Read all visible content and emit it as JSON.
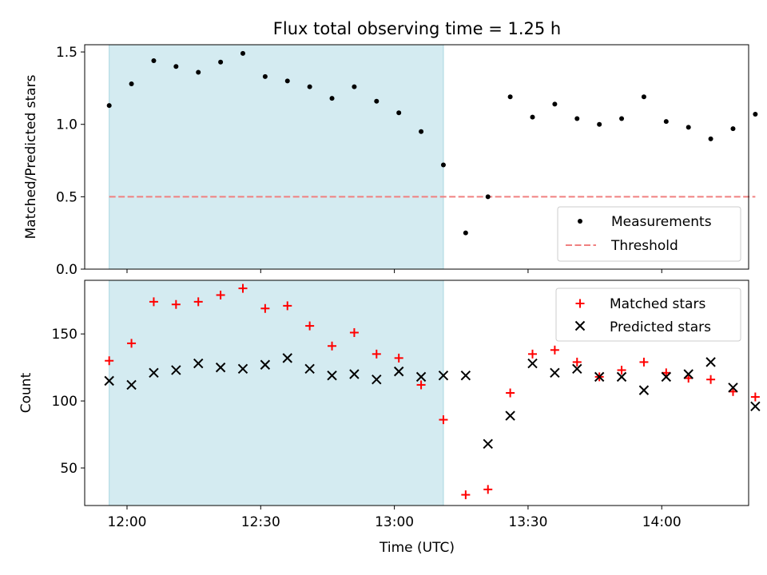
{
  "chart_data": {
    "type": "scatter",
    "title": "Flux total observing time = 1.25 h",
    "xlabel": "Time (UTC)",
    "x_ticks": [
      "12:00",
      "12:30",
      "13:00",
      "13:30",
      "14:00"
    ],
    "x_tick_minutes": [
      720,
      750,
      780,
      810,
      840
    ],
    "xlim_minutes": [
      710.5,
      859.5
    ],
    "shaded_interval_minutes": [
      716,
      791
    ],
    "shaded_color": "#d4ebf1",
    "times": [
      "11:56",
      "12:01",
      "12:06",
      "12:11",
      "12:16",
      "12:21",
      "12:26",
      "12:31",
      "12:36",
      "12:41",
      "12:46",
      "12:51",
      "12:56",
      "13:01",
      "13:06",
      "13:11",
      "13:16",
      "13:21",
      "13:26",
      "13:31",
      "13:36",
      "13:41",
      "13:46",
      "13:51",
      "13:56",
      "14:01",
      "14:06",
      "14:11",
      "14:16",
      "14:21"
    ],
    "top": {
      "ylabel": "Matched/Predicted stars",
      "ylim": [
        0,
        1.55
      ],
      "y_ticks": [
        "0.0",
        "0.5",
        "1.0",
        "1.5"
      ],
      "y_tick_values": [
        0,
        0.5,
        1.0,
        1.5
      ],
      "legend_position": "lower-right",
      "series": [
        {
          "name": "Measurements",
          "marker": "dot",
          "color": "#000000",
          "values": [
            1.13,
            1.28,
            1.44,
            1.4,
            1.36,
            1.43,
            1.49,
            1.33,
            1.3,
            1.26,
            1.18,
            1.26,
            1.16,
            1.08,
            0.95,
            0.72,
            0.25,
            0.5,
            1.19,
            1.05,
            1.14,
            1.04,
            1.0,
            1.04,
            1.19,
            1.02,
            0.98,
            0.9,
            0.97,
            1.07
          ]
        },
        {
          "name": "Threshold",
          "marker": "dashed-line",
          "color": "#f08080",
          "value": 0.5,
          "x_range_minutes": [
            716,
            861
          ]
        }
      ]
    },
    "bottom": {
      "ylabel": "Count",
      "ylim": [
        22,
        190
      ],
      "y_ticks": [
        "50",
        "100",
        "150"
      ],
      "y_tick_values": [
        50,
        100,
        150
      ],
      "legend_position": "upper-right",
      "series": [
        {
          "name": "Matched stars",
          "marker": "plus",
          "color": "#ff0000",
          "values": [
            130,
            143,
            174,
            172,
            174,
            179,
            184,
            169,
            171,
            156,
            141,
            151,
            135,
            132,
            112,
            86,
            30,
            34,
            106,
            135,
            138,
            129,
            118,
            123,
            129,
            121,
            117,
            116,
            107,
            103
          ]
        },
        {
          "name": "Predicted stars",
          "marker": "x",
          "color": "#000000",
          "values": [
            115,
            112,
            121,
            123,
            128,
            125,
            124,
            127,
            132,
            124,
            119,
            120,
            116,
            122,
            118,
            119,
            119,
            68,
            89,
            128,
            121,
            124,
            118,
            118,
            108,
            118,
            120,
            129,
            110,
            96
          ]
        }
      ]
    }
  }
}
